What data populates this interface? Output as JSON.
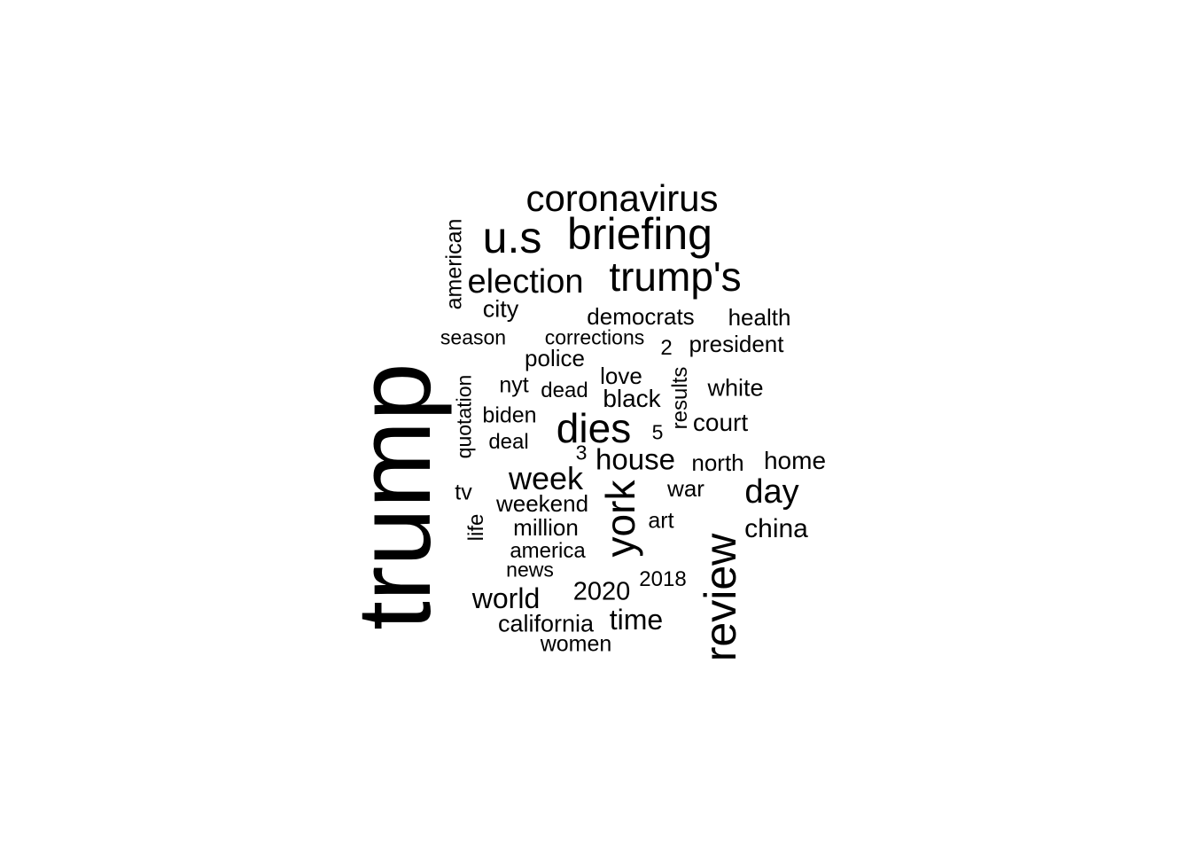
{
  "words": [
    {
      "text": "trump",
      "freq": 100,
      "vertical": true
    },
    {
      "text": "review",
      "freq": 52,
      "vertical": true
    },
    {
      "text": "briefing",
      "freq": 45,
      "vertical": false
    },
    {
      "text": "u.s",
      "freq": 42,
      "vertical": false
    },
    {
      "text": "trump's",
      "freq": 40,
      "vertical": false
    },
    {
      "text": "coronavirus",
      "freq": 37,
      "vertical": false
    },
    {
      "text": "dies",
      "freq": 40,
      "vertical": false
    },
    {
      "text": "election",
      "freq": 35,
      "vertical": false
    },
    {
      "text": "york",
      "freq": 35,
      "vertical": true
    },
    {
      "text": "week",
      "freq": 32,
      "vertical": false
    },
    {
      "text": "day",
      "freq": 32,
      "vertical": false
    },
    {
      "text": "house",
      "freq": 30,
      "vertical": false
    },
    {
      "text": "world",
      "freq": 29,
      "vertical": false
    },
    {
      "text": "time",
      "freq": 28,
      "vertical": false
    },
    {
      "text": "china",
      "freq": 27,
      "vertical": false
    },
    {
      "text": "black",
      "freq": 26,
      "vertical": false
    },
    {
      "text": "home",
      "freq": 26,
      "vertical": false
    },
    {
      "text": "white",
      "freq": 25,
      "vertical": false
    },
    {
      "text": "court",
      "freq": 25,
      "vertical": false
    },
    {
      "text": "city",
      "freq": 25,
      "vertical": false
    },
    {
      "text": "2020",
      "freq": 26,
      "vertical": false
    },
    {
      "text": "weekend",
      "freq": 24,
      "vertical": false
    },
    {
      "text": "california",
      "freq": 24,
      "vertical": false
    },
    {
      "text": "police",
      "freq": 24,
      "vertical": false
    },
    {
      "text": "president",
      "freq": 23,
      "vertical": false
    },
    {
      "text": "health",
      "freq": 23,
      "vertical": false
    },
    {
      "text": "democrats",
      "freq": 23,
      "vertical": false
    },
    {
      "text": "love",
      "freq": 23,
      "vertical": false
    },
    {
      "text": "north",
      "freq": 23,
      "vertical": false
    },
    {
      "text": "war",
      "freq": 23,
      "vertical": false
    },
    {
      "text": "million",
      "freq": 23,
      "vertical": false
    },
    {
      "text": "biden",
      "freq": 22,
      "vertical": false
    },
    {
      "text": "nyt",
      "freq": 22,
      "vertical": false
    },
    {
      "text": "women",
      "freq": 22,
      "vertical": false
    },
    {
      "text": "american",
      "freq": 22,
      "vertical": true
    },
    {
      "text": "tv",
      "freq": 22,
      "vertical": false
    },
    {
      "text": "art",
      "freq": 21,
      "vertical": false
    },
    {
      "text": "dead",
      "freq": 21,
      "vertical": false
    },
    {
      "text": "results",
      "freq": 21,
      "vertical": true
    },
    {
      "text": "deal",
      "freq": 21,
      "vertical": false
    },
    {
      "text": "2",
      "freq": 21,
      "vertical": false
    },
    {
      "text": "2018",
      "freq": 21,
      "vertical": false
    },
    {
      "text": "america",
      "freq": 21,
      "vertical": false
    },
    {
      "text": "life",
      "freq": 21,
      "vertical": true
    },
    {
      "text": "corrections",
      "freq": 20,
      "vertical": false
    },
    {
      "text": "season",
      "freq": 20,
      "vertical": false
    },
    {
      "text": "news",
      "freq": 20,
      "vertical": false
    },
    {
      "text": "quotation",
      "freq": 20,
      "vertical": true
    },
    {
      "text": "5",
      "freq": 20,
      "vertical": false
    },
    {
      "text": "3",
      "freq": 20,
      "vertical": false
    }
  ]
}
